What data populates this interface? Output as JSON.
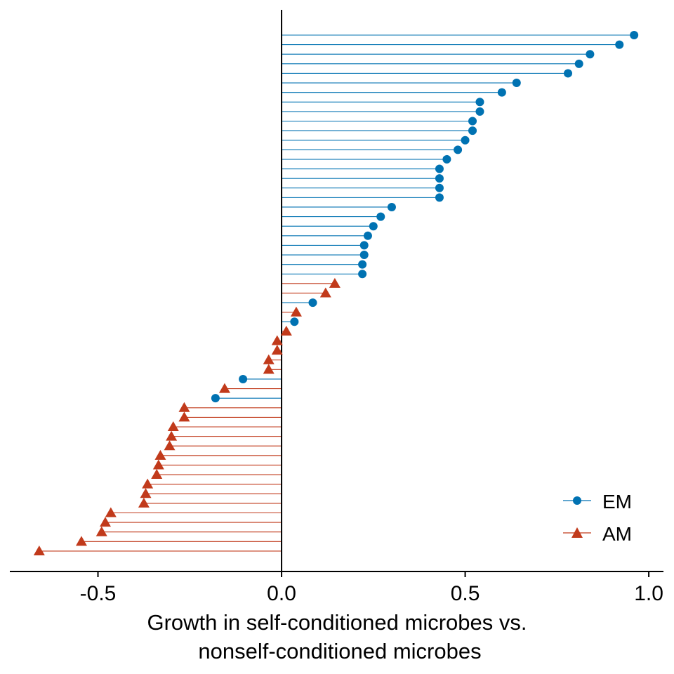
{
  "chart_data": {
    "type": "lollipop",
    "orientation": "horizontal",
    "baseline": 0,
    "xlabel": [
      "Growth in self-conditioned microbes vs.",
      "nonself-conditioned microbes"
    ],
    "xlim": [
      -0.74,
      1.04
    ],
    "xticks": [
      -0.5,
      0.0,
      0.5,
      1.0
    ],
    "xtick_labels": [
      "-0.5",
      "0.0",
      "0.5",
      "1.0"
    ],
    "legend_position": "bottom-right",
    "colors": {
      "EM": "#0072B2",
      "AM": "#C13A1B",
      "axis": "#000000"
    },
    "series": [
      {
        "name": "EM",
        "marker": "circle"
      },
      {
        "name": "AM",
        "marker": "triangle"
      }
    ],
    "points": [
      {
        "group": "EM",
        "value": 0.96
      },
      {
        "group": "EM",
        "value": 0.92
      },
      {
        "group": "EM",
        "value": 0.84
      },
      {
        "group": "EM",
        "value": 0.81
      },
      {
        "group": "EM",
        "value": 0.78
      },
      {
        "group": "EM",
        "value": 0.64
      },
      {
        "group": "EM",
        "value": 0.6
      },
      {
        "group": "EM",
        "value": 0.54
      },
      {
        "group": "EM",
        "value": 0.54
      },
      {
        "group": "EM",
        "value": 0.52
      },
      {
        "group": "EM",
        "value": 0.52
      },
      {
        "group": "EM",
        "value": 0.5
      },
      {
        "group": "EM",
        "value": 0.48
      },
      {
        "group": "EM",
        "value": 0.45
      },
      {
        "group": "EM",
        "value": 0.43
      },
      {
        "group": "EM",
        "value": 0.43
      },
      {
        "group": "EM",
        "value": 0.43
      },
      {
        "group": "EM",
        "value": 0.43
      },
      {
        "group": "EM",
        "value": 0.3
      },
      {
        "group": "EM",
        "value": 0.27
      },
      {
        "group": "EM",
        "value": 0.25
      },
      {
        "group": "EM",
        "value": 0.235
      },
      {
        "group": "EM",
        "value": 0.225
      },
      {
        "group": "EM",
        "value": 0.225
      },
      {
        "group": "EM",
        "value": 0.22
      },
      {
        "group": "EM",
        "value": 0.22
      },
      {
        "group": "AM",
        "value": 0.145
      },
      {
        "group": "AM",
        "value": 0.12
      },
      {
        "group": "EM",
        "value": 0.085
      },
      {
        "group": "AM",
        "value": 0.04
      },
      {
        "group": "EM",
        "value": 0.035
      },
      {
        "group": "AM",
        "value": 0.013
      },
      {
        "group": "AM",
        "value": -0.012
      },
      {
        "group": "AM",
        "value": -0.012
      },
      {
        "group": "AM",
        "value": -0.035
      },
      {
        "group": "AM",
        "value": -0.035
      },
      {
        "group": "EM",
        "value": -0.105
      },
      {
        "group": "AM",
        "value": -0.155
      },
      {
        "group": "EM",
        "value": -0.18
      },
      {
        "group": "AM",
        "value": -0.265
      },
      {
        "group": "AM",
        "value": -0.265
      },
      {
        "group": "AM",
        "value": -0.295
      },
      {
        "group": "AM",
        "value": -0.3
      },
      {
        "group": "AM",
        "value": -0.305
      },
      {
        "group": "AM",
        "value": -0.33
      },
      {
        "group": "AM",
        "value": -0.335
      },
      {
        "group": "AM",
        "value": -0.34
      },
      {
        "group": "AM",
        "value": -0.365
      },
      {
        "group": "AM",
        "value": -0.37
      },
      {
        "group": "AM",
        "value": -0.375
      },
      {
        "group": "AM",
        "value": -0.465
      },
      {
        "group": "AM",
        "value": -0.48
      },
      {
        "group": "AM",
        "value": -0.49
      },
      {
        "group": "AM",
        "value": -0.545
      },
      {
        "group": "AM",
        "value": -0.66
      }
    ]
  }
}
